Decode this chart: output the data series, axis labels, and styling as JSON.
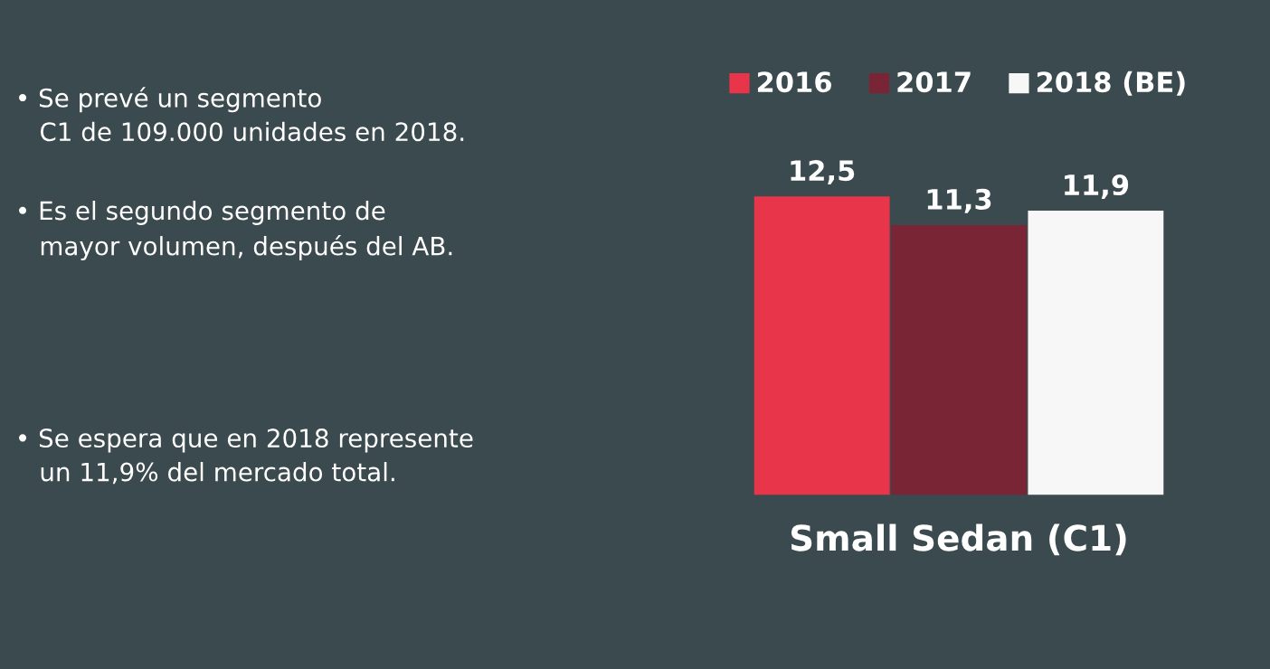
{
  "chart_data": {
    "type": "bar",
    "categories": [
      null
    ],
    "series": [
      {
        "name": "2016",
        "color": "#e8354a",
        "values": [
          12.5
        ],
        "value_labels": [
          "12,5"
        ]
      },
      {
        "name": "2017",
        "color": "#7a2536",
        "values": [
          11.3
        ],
        "value_labels": [
          "11,3"
        ]
      },
      {
        "name": "2018 (BE)",
        "color": "#f7f7f7",
        "values": [
          11.9
        ],
        "value_labels": [
          "11,9"
        ]
      }
    ],
    "xlabel": "Small Sedan (C1)",
    "legend": "top",
    "grid": false,
    "annotations": [
      "• Se prevé un segmento\n   C1 de 109.000 unidades en 2018.",
      "• Es el segundo segmento de\n   mayor volumen, después del AB.",
      "• Se espera que en 2018 represente\n   un 11,9% del mercado total."
    ]
  }
}
